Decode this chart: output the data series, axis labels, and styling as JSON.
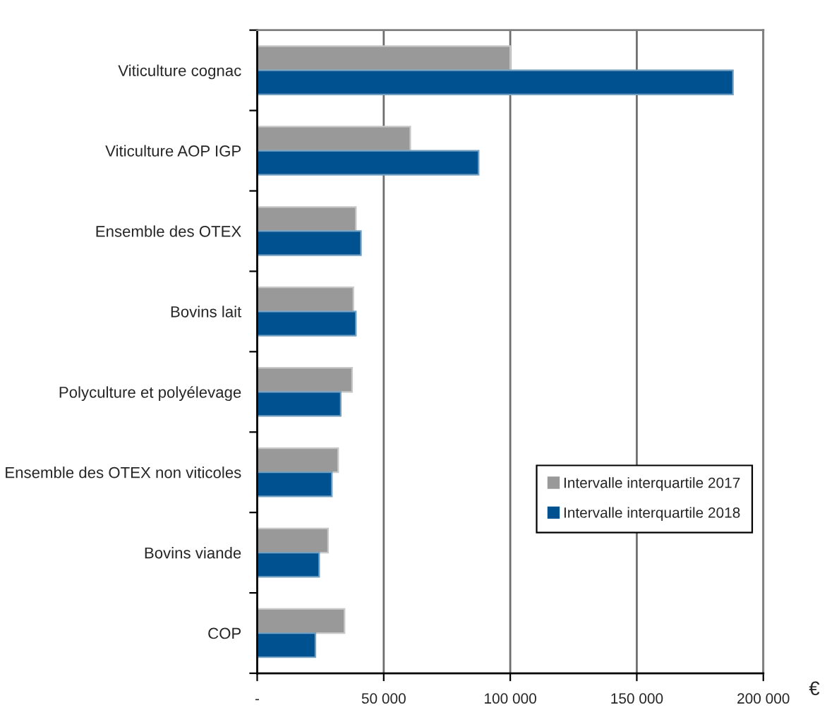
{
  "chart_data": {
    "type": "bar",
    "orientation": "horizontal",
    "xlabel": "€",
    "categories": [
      "Viticulture cognac",
      "Viticulture AOP IGP",
      "Ensemble des OTEX",
      "Bovins lait",
      "Polyculture et polyélevage",
      "Ensemble des OTEX non viticoles",
      "Bovins viande",
      "COP"
    ],
    "series": [
      {
        "name": "Intervalle interquartile 2017",
        "color": "#999999",
        "values": [
          100000,
          60500,
          39000,
          38000,
          37500,
          32000,
          28000,
          34500
        ]
      },
      {
        "name": "Intervalle interquartile 2018",
        "color": "#00518f",
        "values": [
          188000,
          87500,
          41000,
          39000,
          33000,
          29500,
          24500,
          23000
        ]
      }
    ],
    "xlim": [
      0,
      200000
    ],
    "xticks": [
      {
        "value": 0,
        "label": "-"
      },
      {
        "value": 50000,
        "label": "50 000"
      },
      {
        "value": 100000,
        "label": "100 000"
      },
      {
        "value": 150000,
        "label": "150 000"
      },
      {
        "value": 200000,
        "label": "200 000"
      }
    ],
    "grid": "x",
    "legend": "right"
  }
}
